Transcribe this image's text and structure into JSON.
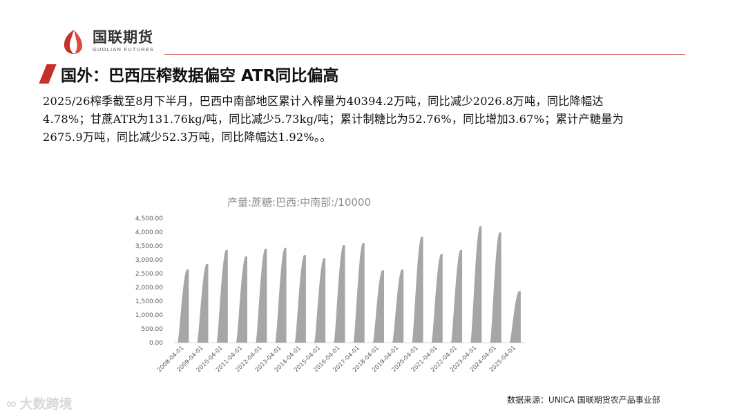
{
  "header": {
    "logo_cn": "国联期货",
    "logo_en": "GUOLIAN FUTURES",
    "brand_color": "#c5302a"
  },
  "slide": {
    "title": "国外：巴西压榨数据偏空 ATR同比偏高",
    "paragraph_lines": [
      "2025/26榨季截至8月下半月，巴西中南部地区累计入榨量为40394.2万吨，同比减少2026.8万吨，同比降幅达",
      "4.78%；甘蔗ATR为131.76kg/吨，同比减少5.73kg/吨；累计制糖比为52.76%，同比增加3.67%；累计产糖量为",
      "2675.9万吨，同比减少52.3万吨，同比降幅达1.92%。。"
    ]
  },
  "chart_data": {
    "type": "area",
    "title": "产量:蔗糖:巴西:中南部:/10000",
    "xlabel": "",
    "ylabel": "",
    "ylim": [
      0,
      4500
    ],
    "yticks": [
      "0.00",
      "500.00",
      "1,000.00",
      "1,500.00",
      "2,000.00",
      "2,500.00",
      "3,000.00",
      "3,500.00",
      "4,000.00",
      "4,500.00"
    ],
    "xticks": [
      "2008-04-01",
      "2009-04-01",
      "2010-04-01",
      "2011-04-01",
      "2012-04-01",
      "2013-04-01",
      "2014-04-01",
      "2015-04-01",
      "2016-04-01",
      "2017-04-01",
      "2018-04-01",
      "2019-04-01",
      "2020-04-01",
      "2021-04-01",
      "2022-04-01",
      "2023-04-01",
      "2024-04-01",
      "2025-04-01"
    ],
    "season_start": [
      "2008-04-01",
      "2009-04-01",
      "2010-04-01",
      "2011-04-01",
      "2012-04-01",
      "2013-04-01",
      "2014-04-01",
      "2015-04-01",
      "2016-04-01",
      "2017-04-01",
      "2018-04-01",
      "2019-04-01",
      "2020-04-01",
      "2021-04-01",
      "2022-04-01",
      "2023-04-01",
      "2024-04-01",
      "2025-04-01"
    ],
    "season_peak": [
      2650,
      2850,
      3350,
      3120,
      3400,
      3430,
      3170,
      3050,
      3530,
      3600,
      2620,
      2650,
      3830,
      3200,
      3350,
      4220,
      3990,
      1860
    ],
    "series_color": "#a6a6a6",
    "axis_color": "#d9d9d9",
    "grid": false,
    "legend": false
  },
  "footer": {
    "source": "数据来源：UNICA 国联期货农产品事业部",
    "watermark": "大数跨境",
    "watermark_icon": "loop-icon"
  }
}
